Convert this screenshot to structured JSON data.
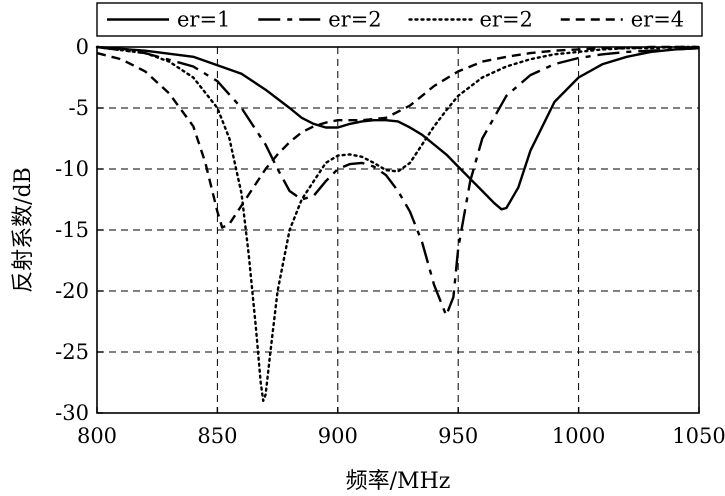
{
  "chart_data": {
    "type": "line",
    "xlabel": "频率/MHz",
    "ylabel": "反射系数/dB",
    "xlim": [
      800,
      1050
    ],
    "ylim": [
      -30,
      0
    ],
    "xticks": [
      800,
      850,
      900,
      950,
      1000,
      1050
    ],
    "yticks": [
      0,
      -5,
      -10,
      -15,
      -20,
      -25,
      -30
    ],
    "grid": true,
    "grid_style": "dashed",
    "legend": "top",
    "series": [
      {
        "name": "er=1",
        "dash": "solid",
        "x": [
          800,
          820,
          840,
          860,
          870,
          880,
          885,
          890,
          895,
          900,
          905,
          910,
          915,
          920,
          925,
          930,
          935,
          940,
          945,
          950,
          955,
          960,
          965,
          968,
          970,
          975,
          980,
          990,
          1000,
          1010,
          1020,
          1030,
          1040,
          1050
        ],
        "y": [
          0,
          -0.3,
          -0.8,
          -2.2,
          -3.5,
          -5.0,
          -5.8,
          -6.3,
          -6.6,
          -6.6,
          -6.3,
          -6.1,
          -6.0,
          -6.0,
          -6.1,
          -6.6,
          -7.2,
          -8.0,
          -8.8,
          -9.8,
          -10.8,
          -11.8,
          -12.8,
          -13.3,
          -13.2,
          -11.5,
          -8.5,
          -4.5,
          -2.5,
          -1.4,
          -0.8,
          -0.4,
          -0.2,
          -0.1
        ]
      },
      {
        "name": "er=2",
        "dash": "long-dash",
        "x": [
          800,
          820,
          840,
          850,
          860,
          870,
          875,
          880,
          885,
          890,
          895,
          900,
          905,
          910,
          915,
          920,
          925,
          930,
          935,
          940,
          945,
          948,
          950,
          955,
          960,
          970,
          980,
          990,
          1000,
          1010,
          1020,
          1030,
          1040,
          1050
        ],
        "y": [
          0,
          -0.5,
          -1.6,
          -2.8,
          -5.0,
          -8.0,
          -10.0,
          -11.8,
          -12.5,
          -12.2,
          -11.0,
          -10.0,
          -9.6,
          -9.5,
          -9.8,
          -10.5,
          -11.8,
          -13.5,
          -16.0,
          -19.5,
          -22.0,
          -20.5,
          -16.5,
          -11.0,
          -7.5,
          -4.0,
          -2.3,
          -1.4,
          -0.9,
          -0.6,
          -0.4,
          -0.3,
          -0.2,
          -0.1
        ]
      },
      {
        "name": "er=2",
        "dash": "dotted",
        "x": [
          800,
          820,
          830,
          840,
          850,
          855,
          860,
          863,
          866,
          868,
          869,
          870,
          872,
          875,
          880,
          885,
          890,
          895,
          900,
          905,
          910,
          915,
          920,
          925,
          930,
          935,
          940,
          945,
          950,
          960,
          970,
          980,
          990,
          1000,
          1010,
          1020,
          1030,
          1040,
          1050
        ],
        "y": [
          0,
          -0.5,
          -1.2,
          -2.5,
          -5.0,
          -7.5,
          -12.0,
          -17.0,
          -23.0,
          -27.5,
          -29.0,
          -28.5,
          -25.0,
          -20.0,
          -15.0,
          -12.5,
          -11.0,
          -9.5,
          -8.9,
          -8.8,
          -9.0,
          -9.5,
          -10.1,
          -10.2,
          -9.5,
          -8.0,
          -6.5,
          -5.2,
          -4.0,
          -2.5,
          -1.6,
          -1.0,
          -0.6,
          -0.4,
          -0.2,
          -0.1,
          -0.1,
          0,
          0
        ]
      },
      {
        "name": "er=4",
        "dash": "dashed",
        "x": [
          800,
          810,
          820,
          830,
          840,
          845,
          850,
          852,
          855,
          860,
          865,
          870,
          875,
          880,
          885,
          890,
          895,
          900,
          905,
          910,
          920,
          930,
          940,
          950,
          960,
          970,
          980,
          990,
          1000,
          1010,
          1020,
          1030,
          1040,
          1050
        ],
        "y": [
          -0.5,
          -1.0,
          -2.0,
          -3.8,
          -6.5,
          -9.5,
          -13.5,
          -14.8,
          -14.5,
          -13.0,
          -11.5,
          -10.0,
          -8.8,
          -7.8,
          -7.0,
          -6.5,
          -6.2,
          -6.0,
          -6.0,
          -6.0,
          -5.8,
          -4.8,
          -3.2,
          -2.0,
          -1.2,
          -0.8,
          -0.5,
          -0.3,
          -0.2,
          -0.1,
          -0.1,
          0,
          0,
          0
        ]
      }
    ]
  }
}
